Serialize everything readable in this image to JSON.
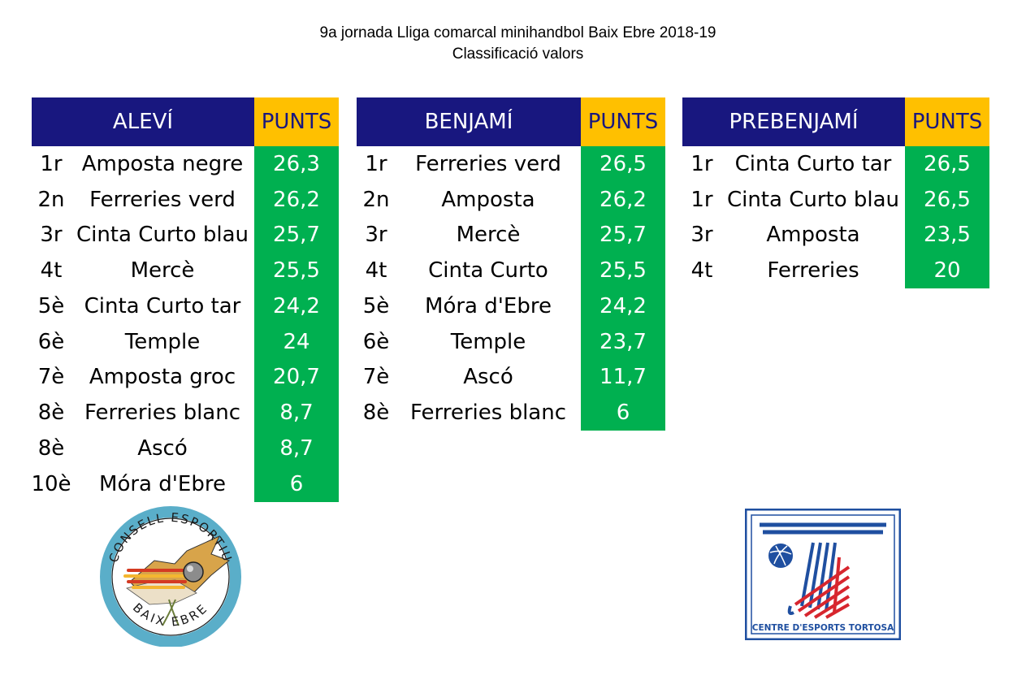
{
  "title": {
    "line1": "9a jornada Lliga comarcal minihandbol Baix Ebre 2018-19",
    "line2": "Classificació valors"
  },
  "points_header": "PUNTS",
  "colors": {
    "header_bg": "#18177f",
    "points_header_bg": "#ffc000",
    "points_bg": "#00b050"
  },
  "tables": [
    {
      "category": "ALEVÍ",
      "rows": [
        {
          "pos": "1r",
          "team": "Amposta negre",
          "points": "26,3"
        },
        {
          "pos": "2n",
          "team": "Ferreries verd",
          "points": "26,2"
        },
        {
          "pos": "3r",
          "team": "Cinta Curto blau",
          "points": "25,7"
        },
        {
          "pos": "4t",
          "team": "Mercè",
          "points": "25,5"
        },
        {
          "pos": "5è",
          "team": "Cinta Curto tar",
          "points": "24,2"
        },
        {
          "pos": "6è",
          "team": "Temple",
          "points": "24"
        },
        {
          "pos": "7è",
          "team": "Amposta groc",
          "points": "20,7"
        },
        {
          "pos": "8è",
          "team": "Ferreries blanc",
          "points": "8,7"
        },
        {
          "pos": "8è",
          "team": "Ascó",
          "points": "8,7"
        },
        {
          "pos": "10è",
          "team": "Móra d'Ebre",
          "points": "6"
        }
      ]
    },
    {
      "category": "BENJAMÍ",
      "rows": [
        {
          "pos": "1r",
          "team": "Ferreries verd",
          "points": "26,5"
        },
        {
          "pos": "2n",
          "team": "Amposta",
          "points": "26,2"
        },
        {
          "pos": "3r",
          "team": "Mercè",
          "points": "25,7"
        },
        {
          "pos": "4t",
          "team": "Cinta Curto",
          "points": "25,5"
        },
        {
          "pos": "5è",
          "team": "Móra d'Ebre",
          "points": "24,2"
        },
        {
          "pos": "6è",
          "team": "Temple",
          "points": "23,7"
        },
        {
          "pos": "7è",
          "team": "Ascó",
          "points": "11,7"
        },
        {
          "pos": "8è",
          "team": "Ferreries blanc",
          "points": "6"
        }
      ]
    },
    {
      "category": "PREBENJAMÍ",
      "rows": [
        {
          "pos": "1r",
          "team": "Cinta Curto tar",
          "points": "26,5"
        },
        {
          "pos": "1r",
          "team": "Cinta Curto blau",
          "points": "26,5"
        },
        {
          "pos": "3r",
          "team": "Amposta",
          "points": "23,5"
        },
        {
          "pos": "4t",
          "team": "Ferreries",
          "points": "20"
        }
      ]
    }
  ],
  "logos": {
    "consell": {
      "top_text": "CONSELL ESPORTIU",
      "bottom_text": "BAIX EBRE"
    },
    "cet": {
      "caption": "CENTRE D'ESPORTS TORTOSA"
    }
  }
}
